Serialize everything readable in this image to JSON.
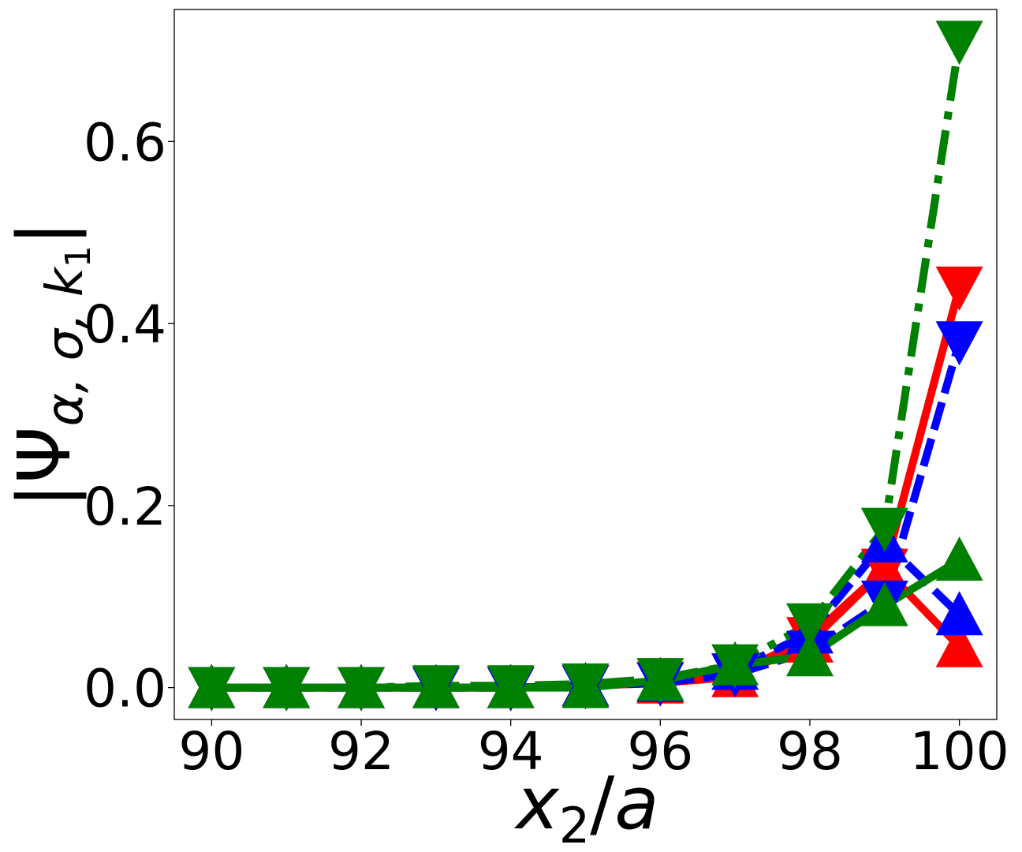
{
  "chart_data": {
    "type": "line",
    "title": "",
    "xlabel": "x_2/a",
    "ylabel": "|Ψ_{α,σ,k_1}|",
    "xlim": [
      89.5,
      100.5
    ],
    "ylim": [
      -0.035,
      0.745
    ],
    "xticks": [
      90,
      92,
      94,
      96,
      98,
      100
    ],
    "xtick_labels": [
      "90",
      "92",
      "94",
      "96",
      "98",
      "100"
    ],
    "yticks": [
      0.0,
      0.2,
      0.4,
      0.6
    ],
    "ytick_labels": [
      "0.0",
      "0.2",
      "0.4",
      "0.6"
    ],
    "grid": false,
    "legend": "none",
    "series": [
      {
        "color": "#ff0000",
        "linestyle": "solid",
        "marker": "triangle-up",
        "x": [
          90,
          91,
          92,
          93,
          94,
          95,
          96,
          97,
          98,
          99,
          100
        ],
        "y": [
          0.0,
          0.0,
          0.0,
          0.0,
          0.0,
          0.002,
          0.005,
          0.012,
          0.05,
          0.13,
          0.045
        ]
      },
      {
        "color": "#ff0000",
        "linestyle": "solid",
        "marker": "triangle-down",
        "x": [
          90,
          91,
          92,
          93,
          94,
          95,
          96,
          97,
          98,
          99,
          100
        ],
        "y": [
          0.0,
          0.0,
          0.0,
          0.0,
          0.0,
          0.002,
          0.006,
          0.015,
          0.055,
          0.13,
          0.44
        ]
      },
      {
        "color": "#0000ff",
        "linestyle": "dashed",
        "marker": "triangle-up",
        "x": [
          90,
          91,
          92,
          93,
          94,
          95,
          96,
          97,
          98,
          99,
          100
        ],
        "y": [
          0.0,
          0.0,
          0.0,
          0.0,
          0.0,
          0.002,
          0.007,
          0.02,
          0.06,
          0.16,
          0.08
        ]
      },
      {
        "color": "#0000ff",
        "linestyle": "dashed",
        "marker": "triangle-down",
        "x": [
          90,
          91,
          92,
          93,
          94,
          95,
          96,
          97,
          98,
          99,
          100
        ],
        "y": [
          0.0,
          0.0,
          0.0,
          0.0,
          0.0,
          0.002,
          0.005,
          0.015,
          0.04,
          0.095,
          0.38
        ]
      },
      {
        "color": "#008000",
        "linestyle": "solid",
        "marker": "triangle-up",
        "x": [
          90,
          91,
          92,
          93,
          94,
          95,
          96,
          97,
          98,
          99,
          100
        ],
        "y": [
          0.0,
          0.0,
          0.0,
          0.0,
          0.0,
          0.0,
          0.008,
          0.025,
          0.035,
          0.09,
          0.14
        ]
      },
      {
        "color": "#008000",
        "linestyle": "dashdot",
        "marker": "triangle-down",
        "x": [
          90,
          91,
          92,
          93,
          94,
          95,
          96,
          97,
          98,
          99,
          100
        ],
        "y": [
          0.0,
          0.0,
          0.0,
          0.002,
          0.002,
          0.004,
          0.01,
          0.025,
          0.07,
          0.175,
          0.71
        ]
      }
    ]
  }
}
